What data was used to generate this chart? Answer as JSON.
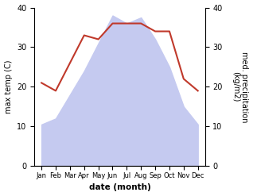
{
  "months": [
    "Jan",
    "Feb",
    "Mar",
    "Apr",
    "May",
    "Jun",
    "Jul",
    "Aug",
    "Sep",
    "Oct",
    "Nov",
    "Dec"
  ],
  "temp": [
    10.5,
    12.0,
    18.0,
    24.0,
    31.0,
    38.0,
    36.0,
    37.5,
    32.0,
    25.0,
    15.0,
    10.5
  ],
  "precip": [
    21,
    19,
    26,
    33,
    32,
    36,
    36,
    36,
    34,
    34,
    22,
    19
  ],
  "fill_color": "#c5caf0",
  "precip_color": "#c0392b",
  "left_ylabel": "max temp (C)",
  "right_ylabel": "med. precipitation\n(kg/m2)",
  "xlabel": "date (month)",
  "ylim_left": [
    0,
    40
  ],
  "ylim_right": [
    0,
    40
  ],
  "left_ticks": [
    0,
    10,
    20,
    30,
    40
  ],
  "right_ticks": [
    0,
    10,
    20,
    30,
    40
  ],
  "figsize": [
    3.18,
    2.47
  ],
  "dpi": 100
}
